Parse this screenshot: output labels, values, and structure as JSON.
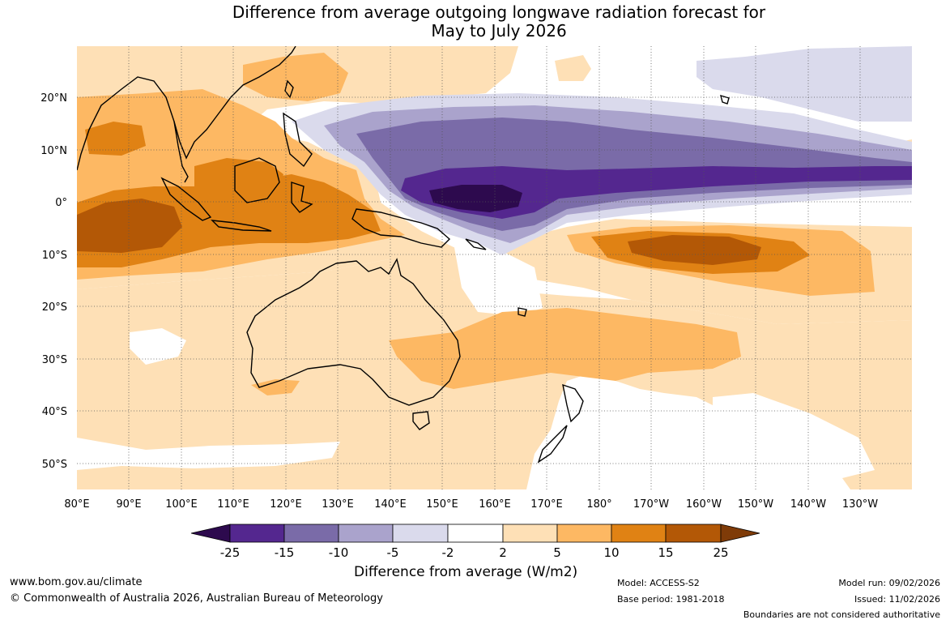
{
  "header": {
    "title_line1": "Difference from average outgoing longwave radiation forecast for",
    "title_line2": "May to July 2026"
  },
  "map": {
    "region": "Australia and Indo-Pacific",
    "lat_labels": [
      "20°N",
      "10°N",
      "0°",
      "10°S",
      "20°S",
      "30°S",
      "40°S",
      "50°S"
    ],
    "lon_labels": [
      "80°E",
      "90°E",
      "100°E",
      "110°E",
      "120°E",
      "130°E",
      "140°E",
      "150°E",
      "160°E",
      "170°E",
      "180°",
      "170°W",
      "160°W",
      "150°W",
      "140°W",
      "130°W"
    ]
  },
  "colorbar": {
    "colors": [
      "#2d0a4e",
      "#54278f",
      "#7a6ba8",
      "#aaa3cc",
      "#dadaec",
      "#ffffff",
      "#fee0b6",
      "#fdb863",
      "#e08214",
      "#b35806",
      "#7f3b08"
    ],
    "labels": [
      "-25",
      "-15",
      "-10",
      "-5",
      "-2",
      "2",
      "5",
      "10",
      "15",
      "25"
    ],
    "title": "Difference from average (W/m2)"
  },
  "footer": {
    "website": "www.bom.gov.au/climate",
    "copyright": "© Commonwealth of Australia 2026, Australian Bureau of Meteorology",
    "model": "Model: ACCESS-S2",
    "base_period": "Base period: 1981-2018",
    "model_run": "Model run: 09/02/2026",
    "issued": "Issued: 11/02/2026",
    "disclaimer": "Boundaries are not considered authoritative"
  }
}
